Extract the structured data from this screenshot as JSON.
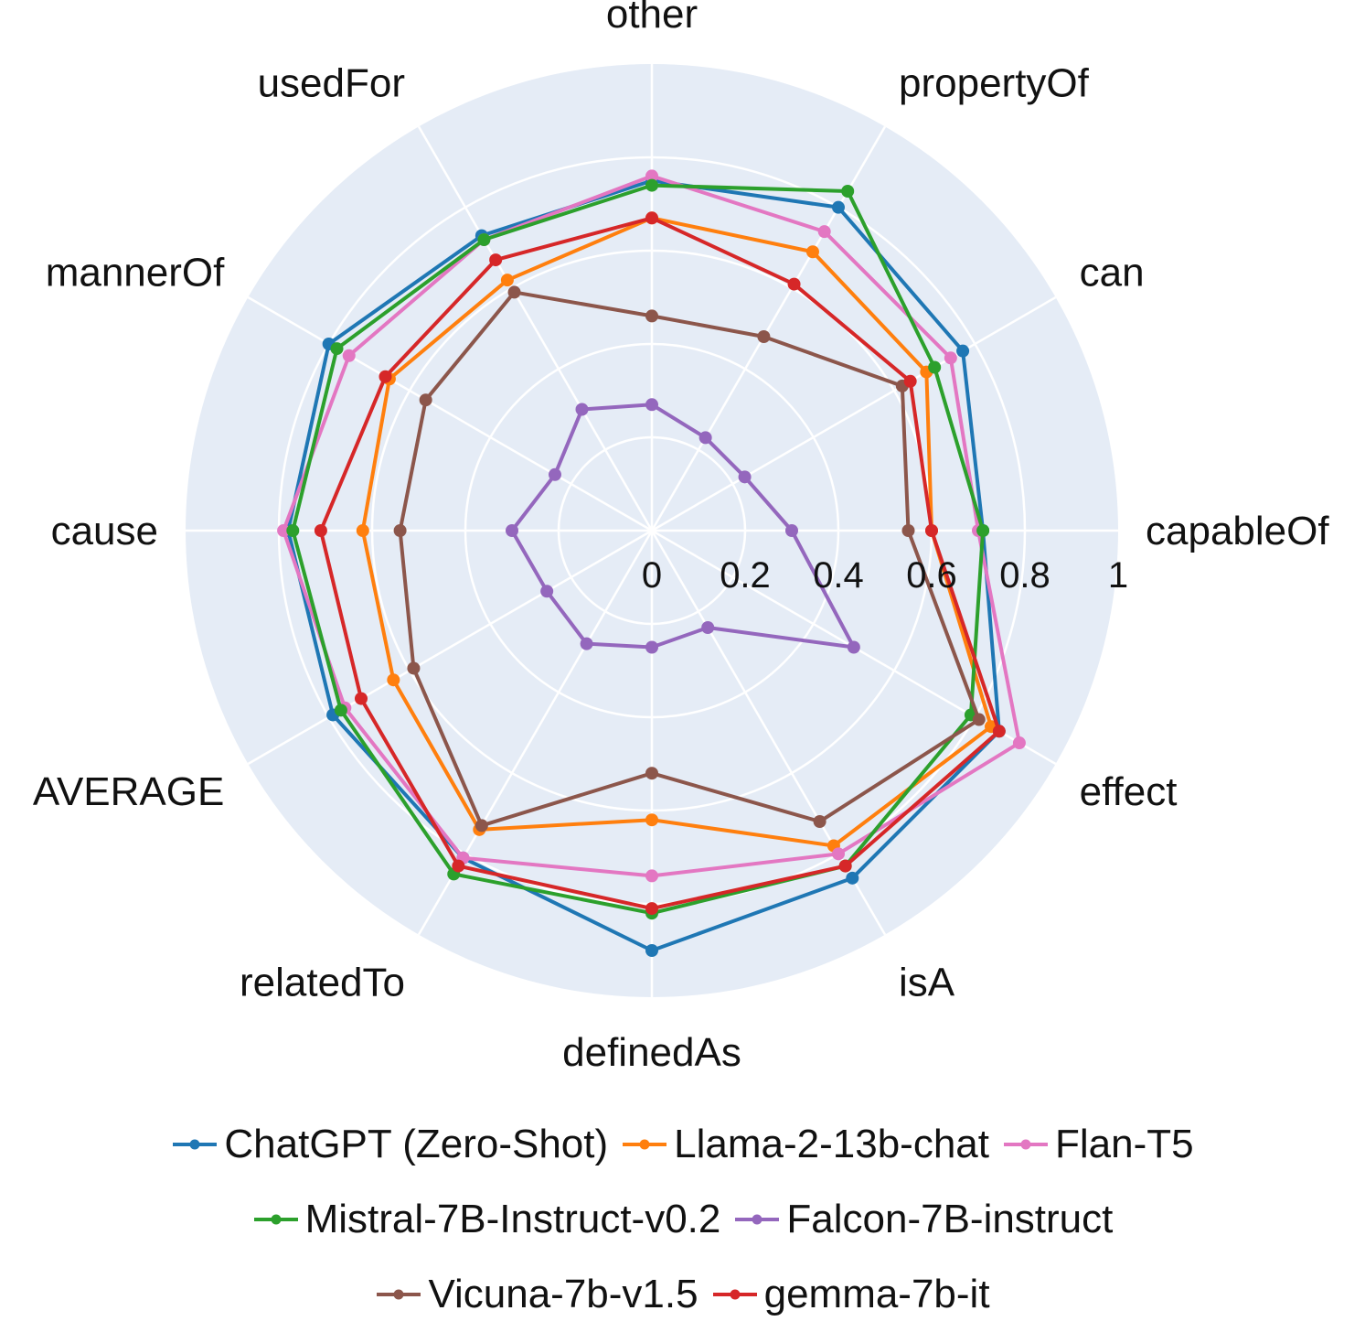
{
  "chart_data": {
    "type": "radar",
    "axes": [
      "capableOf",
      "can",
      "propertyOf",
      "other",
      "usedFor",
      "mannerOf",
      "cause",
      "AVERAGE",
      "relatedTo",
      "definedAs",
      "isA",
      "effect"
    ],
    "radial_ticks": [
      "0",
      "0.2",
      "0.4",
      "0.6",
      "0.8",
      "1"
    ],
    "radial_range": [
      0,
      1
    ],
    "grid": true,
    "legend_position": "bottom",
    "series": [
      {
        "name": "ChatGPT (Zero-Shot)",
        "color": "#1f77b4",
        "values": [
          0.71,
          0.77,
          0.8,
          0.75,
          0.73,
          0.8,
          0.78,
          0.79,
          0.81,
          0.9,
          0.86,
          0.86
        ]
      },
      {
        "name": "Llama-2-13b-chat",
        "color": "#ff7f0e",
        "values": [
          0.6,
          0.68,
          0.69,
          0.67,
          0.62,
          0.65,
          0.62,
          0.64,
          0.74,
          0.62,
          0.78,
          0.84
        ]
      },
      {
        "name": "Flan-T5",
        "color": "#e377c2",
        "values": [
          0.7,
          0.74,
          0.74,
          0.76,
          0.72,
          0.75,
          0.79,
          0.76,
          0.81,
          0.74,
          0.8,
          0.91
        ]
      },
      {
        "name": "Mistral-7B-Instruct-v0.2",
        "color": "#2ca02c",
        "values": [
          0.71,
          0.7,
          0.84,
          0.74,
          0.72,
          0.78,
          0.77,
          0.77,
          0.85,
          0.82,
          0.83,
          0.79
        ]
      },
      {
        "name": "Falcon-7B-instruct",
        "color": "#9467bd",
        "values": [
          0.3,
          0.23,
          0.23,
          0.27,
          0.3,
          0.24,
          0.3,
          0.26,
          0.28,
          0.25,
          0.24,
          0.5
        ]
      },
      {
        "name": "Vicuna-7b-v1.5",
        "color": "#8c564b",
        "values": [
          0.55,
          0.62,
          0.48,
          0.46,
          0.59,
          0.56,
          0.54,
          0.59,
          0.73,
          0.52,
          0.72,
          0.81
        ]
      },
      {
        "name": "gemma-7b-it",
        "color": "#d62728",
        "values": [
          0.6,
          0.64,
          0.61,
          0.67,
          0.67,
          0.66,
          0.71,
          0.72,
          0.83,
          0.81,
          0.83,
          0.86
        ]
      }
    ]
  }
}
